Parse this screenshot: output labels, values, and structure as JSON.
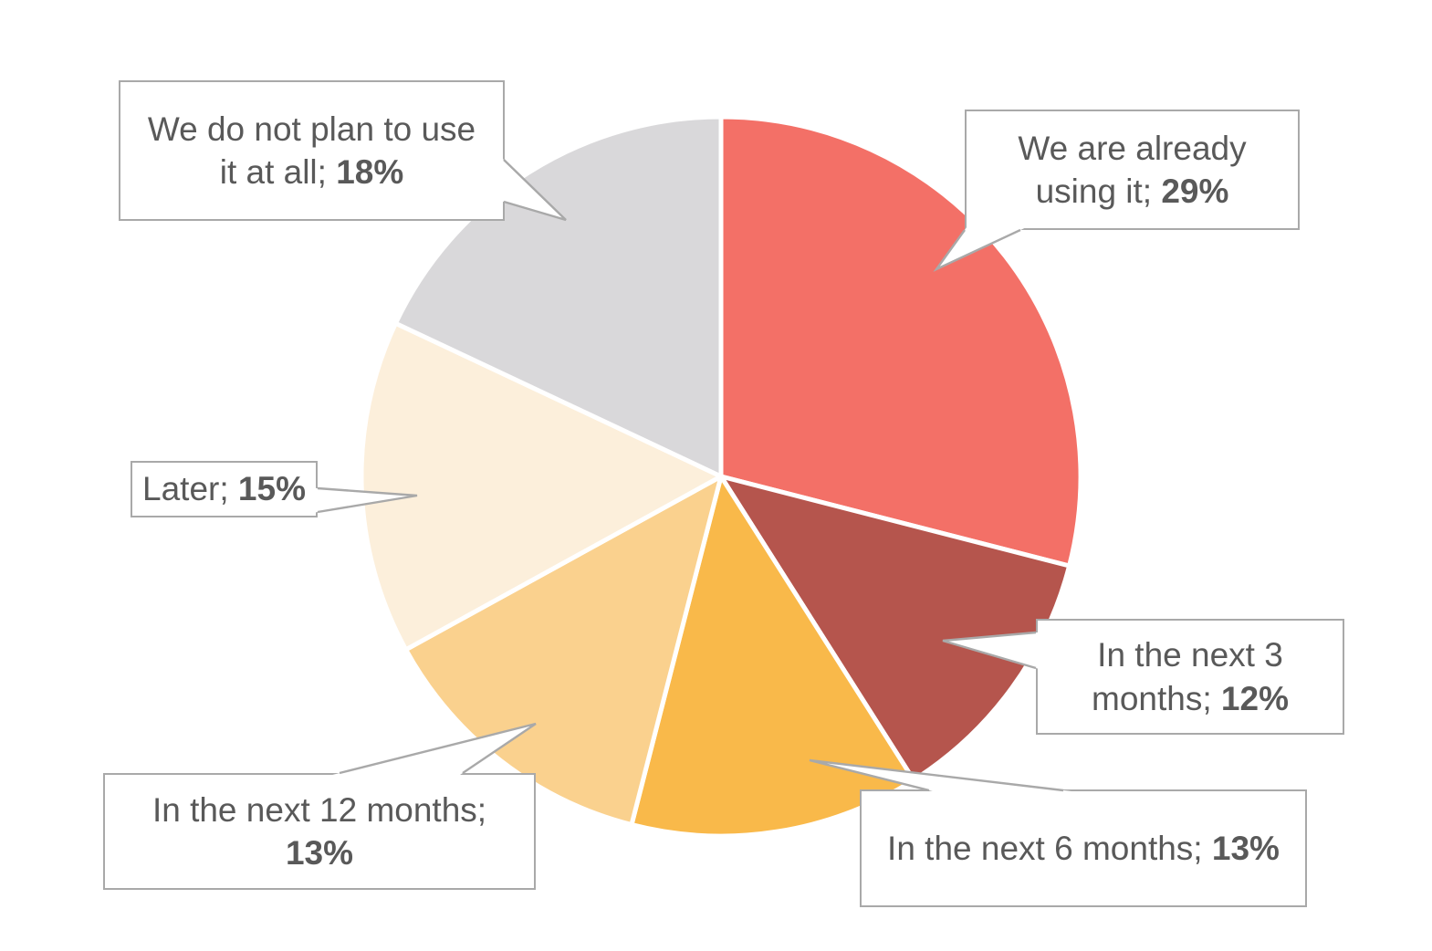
{
  "chart_data": {
    "type": "pie",
    "title": "",
    "legend": "none",
    "background": "#FFFFFF",
    "slice_gap_color": "#FFFFFF",
    "callout_border_color": "#A9A9A9",
    "callout_text_color": "#595959",
    "direction": "clockwise",
    "start_angle": "top",
    "categories": [
      "We are already using it",
      "In the next 3 months",
      "In the next 6 months",
      "In the next 12 months",
      "Later",
      "We do not plan to use it at all"
    ],
    "values": [
      29,
      12,
      13,
      13,
      15,
      18
    ],
    "slices": [
      {
        "label": "We are already using it",
        "value": 29,
        "pct": "29%",
        "color": "#F37067",
        "line1": "We are already",
        "line1_bold": "",
        "line2": "using it; ",
        "line2_bold": "29%"
      },
      {
        "label": "In the next 3 months",
        "value": 12,
        "pct": "12%",
        "color": "#B5554D",
        "line1": "In the next 3",
        "line1_bold": "",
        "line2": "months; ",
        "line2_bold": "12%"
      },
      {
        "label": "In the next 6 months",
        "value": 13,
        "pct": "13%",
        "color": "#F9B94A",
        "line1": "In the next 6 months; ",
        "line1_bold": "13%",
        "line2": "",
        "line2_bold": ""
      },
      {
        "label": "In the next 12 months",
        "value": 13,
        "pct": "13%",
        "color": "#FAD18E",
        "line1": "In the next 12 months;",
        "line1_bold": "",
        "line2": "",
        "line2_bold": "13%"
      },
      {
        "label": "Later",
        "value": 15,
        "pct": "15%",
        "color": "#FCEFDB",
        "line1": "Later; ",
        "line1_bold": "15%",
        "line2": "",
        "line2_bold": ""
      },
      {
        "label": "We do not plan to use it at all",
        "value": 18,
        "pct": "18%",
        "color": "#D9D8DA",
        "line1": "We do not plan to use",
        "line1_bold": "",
        "line2": "it at all; ",
        "line2_bold": "18%"
      }
    ]
  }
}
